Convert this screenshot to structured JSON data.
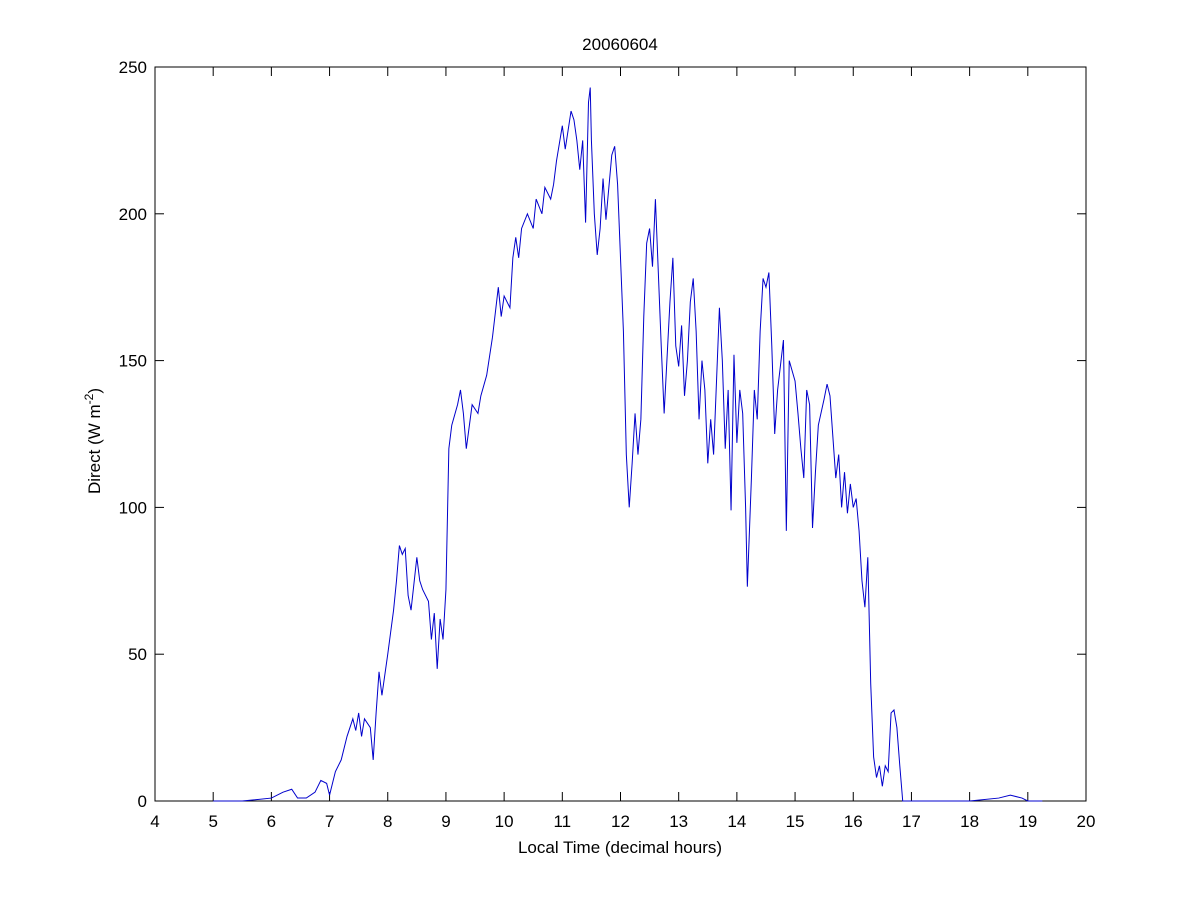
{
  "chart_data": {
    "type": "line",
    "title": "20060604",
    "xlabel": "Local Time (decimal hours)",
    "ylabel": {
      "text": "Direct (W m",
      "superscript": "-2",
      "suffix": ")"
    },
    "xlim": [
      4,
      20
    ],
    "xticks": [
      4,
      5,
      6,
      7,
      8,
      9,
      10,
      11,
      12,
      13,
      14,
      15,
      16,
      17,
      18,
      19,
      20
    ],
    "ylim": [
      0,
      250
    ],
    "yticks": [
      0,
      50,
      100,
      150,
      200,
      250
    ],
    "series": [
      {
        "color": "#0000cc",
        "x": [
          5.0,
          5.5,
          6.0,
          6.2,
          6.35,
          6.45,
          6.6,
          6.75,
          6.85,
          6.95,
          7.0,
          7.1,
          7.2,
          7.3,
          7.4,
          7.45,
          7.5,
          7.55,
          7.6,
          7.7,
          7.75,
          7.8,
          7.85,
          7.9,
          8.0,
          8.1,
          8.15,
          8.2,
          8.25,
          8.3,
          8.35,
          8.4,
          8.5,
          8.55,
          8.6,
          8.7,
          8.75,
          8.8,
          8.85,
          8.9,
          8.95,
          9.0,
          9.05,
          9.1,
          9.2,
          9.25,
          9.3,
          9.35,
          9.45,
          9.55,
          9.6,
          9.7,
          9.8,
          9.9,
          9.95,
          10.0,
          10.1,
          10.15,
          10.2,
          10.25,
          10.3,
          10.4,
          10.5,
          10.55,
          10.65,
          10.7,
          10.8,
          10.85,
          10.9,
          11.0,
          11.05,
          11.15,
          11.2,
          11.25,
          11.3,
          11.35,
          11.4,
          11.45,
          11.48,
          11.5,
          11.55,
          11.6,
          11.65,
          11.7,
          11.75,
          11.85,
          11.9,
          11.95,
          12.0,
          12.05,
          12.1,
          12.15,
          12.2,
          12.25,
          12.3,
          12.35,
          12.4,
          12.45,
          12.5,
          12.55,
          12.6,
          12.65,
          12.7,
          12.75,
          12.85,
          12.9,
          12.95,
          13.0,
          13.05,
          13.1,
          13.15,
          13.2,
          13.25,
          13.3,
          13.35,
          13.4,
          13.45,
          13.5,
          13.55,
          13.6,
          13.7,
          13.75,
          13.8,
          13.85,
          13.9,
          13.95,
          14.0,
          14.05,
          14.1,
          14.15,
          14.18,
          14.25,
          14.3,
          14.35,
          14.4,
          14.45,
          14.5,
          14.55,
          14.6,
          14.65,
          14.7,
          14.8,
          14.85,
          14.9,
          15.0,
          15.05,
          15.1,
          15.15,
          15.2,
          15.25,
          15.3,
          15.35,
          15.4,
          15.5,
          15.55,
          15.6,
          15.7,
          15.75,
          15.8,
          15.85,
          15.9,
          15.95,
          16.0,
          16.05,
          16.1,
          16.15,
          16.2,
          16.25,
          16.3,
          16.35,
          16.4,
          16.45,
          16.5,
          16.55,
          16.6,
          16.65,
          16.7,
          16.75,
          16.8,
          16.85,
          17.0,
          18.0,
          18.5,
          18.7,
          18.9,
          19.0,
          19.25
        ],
        "values": [
          0,
          0,
          1,
          3,
          4,
          1,
          1,
          3,
          7,
          6,
          2,
          10,
          14,
          22,
          28,
          24,
          30,
          22,
          28,
          25,
          14,
          30,
          44,
          36,
          50,
          65,
          75,
          87,
          84,
          86,
          70,
          65,
          83,
          75,
          72,
          68,
          55,
          64,
          45,
          62,
          55,
          72,
          120,
          128,
          135,
          140,
          132,
          120,
          135,
          132,
          138,
          145,
          158,
          175,
          165,
          172,
          168,
          185,
          192,
          185,
          195,
          200,
          195,
          205,
          200,
          209,
          205,
          210,
          218,
          230,
          222,
          235,
          232,
          225,
          215,
          225,
          197,
          238,
          243,
          225,
          200,
          186,
          195,
          212,
          198,
          220,
          223,
          210,
          185,
          160,
          118,
          100,
          115,
          132,
          118,
          130,
          165,
          190,
          195,
          182,
          205,
          180,
          155,
          132,
          170,
          185,
          155,
          148,
          162,
          138,
          150,
          170,
          178,
          160,
          130,
          150,
          140,
          115,
          130,
          118,
          168,
          150,
          120,
          140,
          99,
          152,
          122,
          140,
          132,
          100,
          73,
          110,
          140,
          130,
          160,
          178,
          175,
          180,
          155,
          125,
          140,
          157,
          92,
          150,
          143,
          132,
          120,
          110,
          140,
          135,
          93,
          112,
          128,
          137,
          142,
          138,
          110,
          118,
          100,
          112,
          98,
          108,
          100,
          103,
          92,
          75,
          66,
          83,
          40,
          15,
          8,
          12,
          5,
          12,
          10,
          30,
          31,
          25,
          12,
          0,
          0,
          0,
          1,
          2,
          1,
          0,
          0
        ]
      }
    ]
  }
}
